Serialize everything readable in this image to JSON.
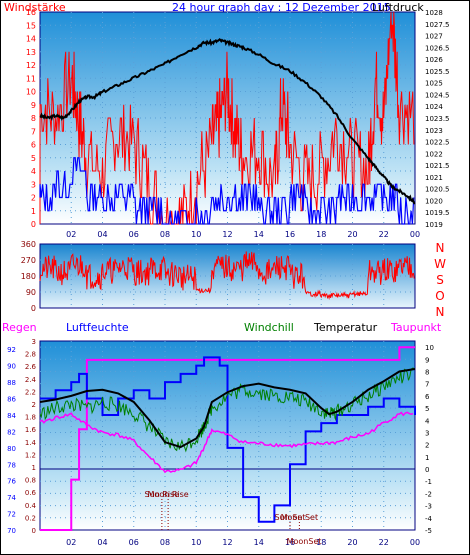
{
  "title": "24 hour graph day : 12 Dezember 2015",
  "colors": {
    "red": "#ff0000",
    "blue": "#0000ff",
    "black": "#000000",
    "green": "#008000",
    "magenta": "#ff00ff",
    "dark_blue": "#000080",
    "dark_red": "#8b0000"
  },
  "chart_data": [
    {
      "type": "line",
      "panel": "wind_pressure",
      "left_label": "Windstärke",
      "right_label": "Luftdruck",
      "x_ticks": [
        "02",
        "04",
        "06",
        "08",
        "10",
        "12",
        "14",
        "16",
        "18",
        "20",
        "22",
        "00"
      ],
      "y_left_ticks": [
        "16",
        "15",
        "14",
        "13",
        "12",
        "11",
        "10",
        "9",
        "8",
        "7",
        "6",
        "5",
        "4",
        "3",
        "2",
        "1",
        "0"
      ],
      "y_right_ticks": [
        "1028",
        "1027.5",
        "1027",
        "1026.5",
        "1026",
        "1025.5",
        "1025",
        "1024.5",
        "1024",
        "1023.5",
        "1023",
        "1022.5",
        "1022",
        "1021.5",
        "1021",
        "1020.5",
        "1020",
        "1019.5",
        "1019"
      ],
      "ylim_left": [
        0,
        16
      ],
      "ylim_right": [
        1019,
        1028
      ],
      "series": [
        {
          "name": "Luftdruck",
          "color": "black",
          "axis": "right",
          "x": [
            0,
            0.5,
            1,
            1.5,
            2,
            2.5,
            3,
            3.5,
            4,
            5,
            6,
            7,
            8,
            9,
            10,
            10.5,
            11,
            11.5,
            12,
            12.5,
            13,
            14,
            15,
            16,
            17,
            18,
            19,
            20,
            21,
            21.5,
            22,
            22.5,
            23,
            23.5,
            24
          ],
          "values": [
            1023.6,
            1023.5,
            1023.6,
            1023.5,
            1023.8,
            1024.2,
            1024.4,
            1024.4,
            1024.6,
            1024.9,
            1025.2,
            1025.5,
            1025.8,
            1026.2,
            1026.5,
            1026.7,
            1026.7,
            1026.8,
            1026.7,
            1026.6,
            1026.5,
            1026.2,
            1025.8,
            1025.5,
            1025.0,
            1024.4,
            1023.6,
            1022.6,
            1021.8,
            1021.4,
            1021.0,
            1020.6,
            1020.4,
            1020.2,
            1019.9
          ]
        },
        {
          "name": "Wind gust",
          "color": "red",
          "axis": "left",
          "x": [
            0,
            1,
            2,
            2.5,
            3,
            4,
            5,
            6,
            7,
            8,
            9,
            10,
            11,
            11.5,
            12,
            12.5,
            13,
            14,
            15,
            15.5,
            16,
            17,
            18,
            19,
            20,
            21,
            21.5,
            22,
            22.5,
            23,
            24
          ],
          "values": [
            9,
            8,
            11,
            8,
            5,
            4,
            7,
            6,
            3,
            0,
            0,
            3,
            6,
            8,
            10,
            7,
            5,
            6,
            3,
            9,
            6,
            3,
            4,
            7,
            5,
            4,
            11,
            8,
            16,
            9,
            8
          ]
        },
        {
          "name": "Wind average",
          "color": "blue",
          "axis": "left",
          "x": [
            0,
            1,
            2,
            3,
            4,
            5,
            6,
            7,
            8,
            9,
            10,
            11,
            12,
            13,
            14,
            15,
            16,
            17,
            18,
            19,
            20,
            21,
            22,
            23,
            24
          ],
          "values": [
            2,
            3,
            4,
            2,
            2,
            2,
            1,
            1,
            0,
            0,
            1,
            2,
            2,
            2,
            1,
            1,
            2,
            1,
            1,
            2,
            2,
            2,
            2,
            1,
            2
          ]
        }
      ]
    },
    {
      "type": "line",
      "panel": "wind_direction",
      "y_ticks": [
        "360",
        "270",
        "180",
        "90",
        "0"
      ],
      "direction_labels": [
        "N",
        "W",
        "S",
        "O",
        "N"
      ],
      "ylim": [
        0,
        360
      ],
      "series": [
        {
          "name": "Wind direction",
          "color": "red",
          "x": [
            0,
            1,
            2,
            3,
            4,
            5,
            6,
            7,
            8,
            9,
            10,
            11,
            12,
            13,
            14,
            15,
            16,
            17,
            18,
            19,
            20,
            21,
            22,
            23,
            24
          ],
          "values": [
            220,
            200,
            240,
            180,
            210,
            230,
            200,
            220,
            190,
            170,
            100,
            230,
            220,
            250,
            200,
            230,
            180,
            80,
            70,
            70,
            80,
            200,
            210,
            240,
            180
          ]
        }
      ]
    },
    {
      "type": "line",
      "panel": "temperature_humidity",
      "labels": [
        "Regen",
        "Luftfeuchte",
        "Windchill",
        "Temperatur",
        "Taupunkt"
      ],
      "x_ticks": [
        "02",
        "04",
        "06",
        "08",
        "10",
        "12",
        "14",
        "16",
        "18",
        "20",
        "22",
        "00"
      ],
      "y_humidity_ticks": [
        "92",
        "90",
        "88",
        "86",
        "84",
        "82",
        "80",
        "78",
        "76",
        "74",
        "72",
        "70"
      ],
      "y_rain_ticks": [
        "3",
        "2.8",
        "2.6",
        "2.4",
        "2.2",
        "2",
        "1.8",
        "1.6",
        "1.4",
        "1.2",
        "1",
        "0.8",
        "0.6",
        "0.4",
        "0.2",
        "0"
      ],
      "y_temp_ticks": [
        "10",
        "9",
        "8",
        "7",
        "6",
        "5",
        "4",
        "3",
        "2",
        "1",
        "0",
        "-1",
        "-2",
        "-3",
        "-4",
        "-5"
      ],
      "ylim_humidity": [
        70,
        93
      ],
      "ylim_rain": [
        0,
        3
      ],
      "ylim_temp": [
        -5,
        10.5
      ],
      "annotations": [
        {
          "text": "Sun Rise",
          "x": 7.8
        },
        {
          "text": "Sun Set",
          "x": 16.0
        },
        {
          "text": "Moon Rise",
          "x": 8.2
        },
        {
          "text": "Moon Set",
          "x": 16.6
        },
        {
          "text": "MoonSet",
          "x": 16.9
        }
      ],
      "series": [
        {
          "name": "Temperatur",
          "color": "black",
          "axis": "temp",
          "x": [
            0,
            1,
            2,
            3,
            4,
            5,
            6,
            7,
            8,
            9,
            10,
            10.5,
            11,
            12,
            13,
            14,
            15,
            16,
            17,
            18,
            18.5,
            19,
            20,
            21,
            22,
            23,
            24
          ],
          "values": [
            5.5,
            5.7,
            6.0,
            6.4,
            6.5,
            6.2,
            5.5,
            4.0,
            2.2,
            1.8,
            2.5,
            3.5,
            5.5,
            6.3,
            6.8,
            7.0,
            6.7,
            6.5,
            6.2,
            5.0,
            4.5,
            4.7,
            5.5,
            6.5,
            7.2,
            8.0,
            8.2
          ]
        },
        {
          "name": "Windchill",
          "color": "green",
          "axis": "temp",
          "x": [
            0,
            1,
            2,
            3,
            4,
            5,
            6,
            7,
            8,
            9,
            10,
            10.5,
            11,
            12,
            13,
            14,
            15,
            16,
            17,
            18,
            18.5,
            19,
            20,
            21,
            22,
            23,
            24
          ],
          "values": [
            4.5,
            5.0,
            5.3,
            5.0,
            5.5,
            5.2,
            4.6,
            3.5,
            2.2,
            1.8,
            2.5,
            3.5,
            5.0,
            6.0,
            6.5,
            6.3,
            6.0,
            5.9,
            5.5,
            4.8,
            4.5,
            4.7,
            5.3,
            6.0,
            6.8,
            7.5,
            7.8
          ]
        },
        {
          "name": "Taupunkt",
          "color": "magenta",
          "axis": "temp",
          "x": [
            0,
            1,
            2,
            3,
            4,
            5,
            6,
            7,
            8,
            9,
            10,
            10.5,
            11,
            12,
            13,
            14,
            15,
            16,
            17,
            18,
            19,
            20,
            21,
            22,
            23,
            24
          ],
          "values": [
            3.8,
            4.2,
            4.5,
            3.6,
            3.0,
            2.8,
            2.3,
            1.0,
            -0.2,
            -0.1,
            0.5,
            1.8,
            3.2,
            2.8,
            2.2,
            2.1,
            2.0,
            1.9,
            2.0,
            2.1,
            2.2,
            2.6,
            2.9,
            3.8,
            4.5,
            4.6
          ]
        },
        {
          "name": "Luftfeuchte",
          "color": "blue",
          "axis": "humidity",
          "x": [
            0,
            1,
            2,
            2.5,
            3,
            4,
            5,
            6,
            7,
            8,
            9,
            10,
            10.5,
            11,
            11.5,
            12,
            13,
            14,
            15,
            16,
            17,
            18,
            19,
            20,
            21,
            22,
            23,
            24
          ],
          "values": [
            86,
            87,
            88,
            89,
            86,
            84,
            86,
            87,
            86,
            88,
            89,
            90,
            91,
            91,
            90,
            80,
            74,
            71,
            73,
            78,
            82,
            83,
            84,
            84,
            85,
            86,
            85,
            84
          ]
        },
        {
          "name": "Regen",
          "color": "magenta",
          "axis": "rain",
          "x": [
            0,
            1,
            2,
            2.5,
            3,
            4,
            8,
            12,
            16,
            20,
            21,
            22,
            23,
            24
          ],
          "values": [
            0,
            0,
            0.8,
            1.6,
            2.7,
            2.7,
            2.7,
            2.7,
            2.7,
            2.7,
            2.7,
            2.7,
            2.9,
            2.9
          ]
        }
      ]
    }
  ]
}
